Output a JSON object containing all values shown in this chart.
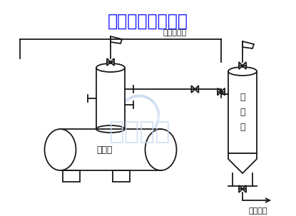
{
  "title": "工艺系统流程简图",
  "title_color": "#1a1aff",
  "bg_color": "#ffffff",
  "line_color": "#1a1a1a",
  "watermark_color": "#c8d8ef",
  "label_chujyangqi": "除氧器",
  "label_shounengqi": "收\n能\n器",
  "label_chuyanshuimuguan": "除盐水母管",
  "label_qushushuixiang": "去疏水箱",
  "lw": 1.3,
  "fig_w": 4.15,
  "fig_h": 3.03,
  "dpi": 100
}
